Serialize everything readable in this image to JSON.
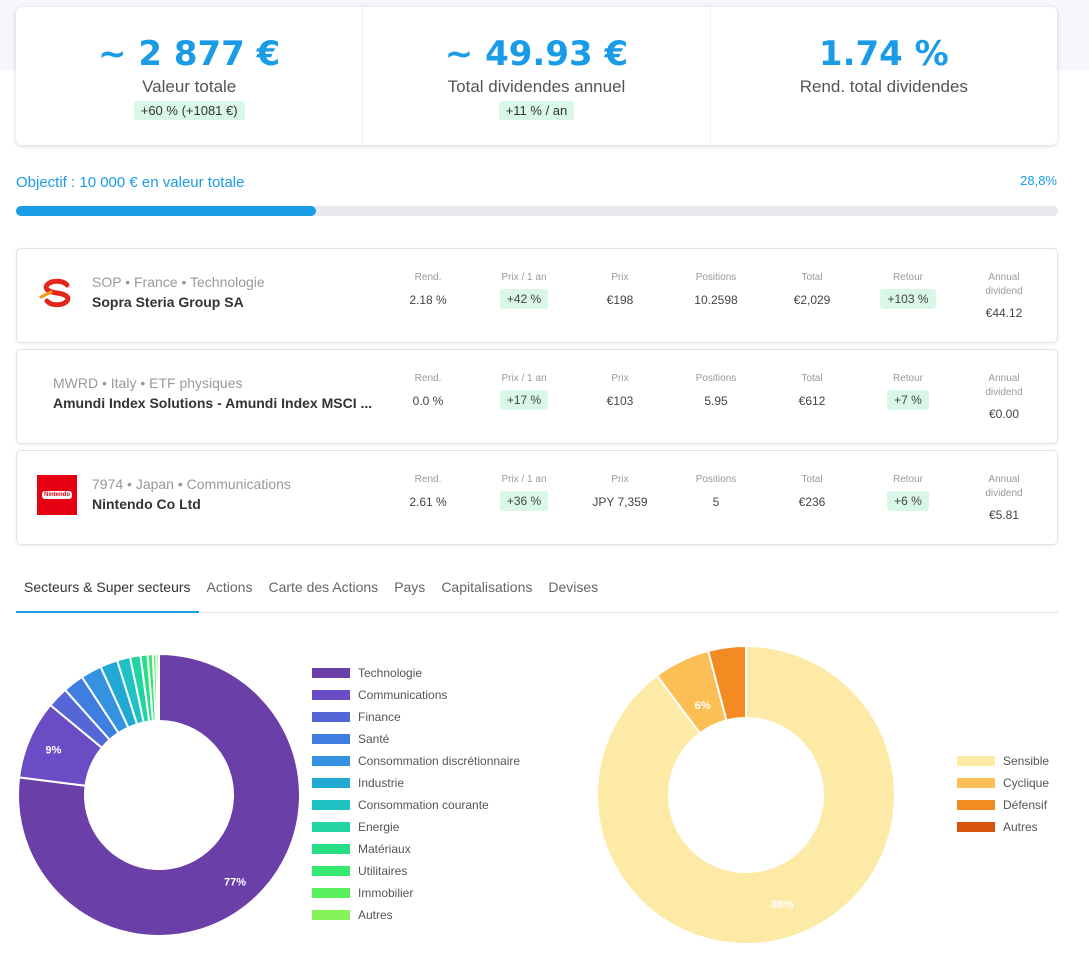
{
  "summary": {
    "value": {
      "amount": "~ 2 877 €",
      "label": "Valeur totale",
      "delta": "+60 % (+1081 €)"
    },
    "dividends": {
      "amount": "~ 49.93 €",
      "label": "Total dividendes annuel",
      "delta": "+11 % / an"
    },
    "yield": {
      "amount": "1.74 %",
      "label": "Rend. total dividendes"
    }
  },
  "goal": {
    "label": "Objectif : 10 000 € en valeur totale",
    "percent_text": "28,8%",
    "progress": 0.288
  },
  "columns": {
    "rend": "Rend.",
    "prix_an": "Prix / 1 an",
    "prix": "Prix",
    "positions": "Positions",
    "total": "Total",
    "retour": "Retour",
    "annual_1": "Annual",
    "annual_2": "dividend"
  },
  "holdings": [
    {
      "meta": "SOP • France • Technologie",
      "name": "Sopra Steria Group SA",
      "logo": "sopra-steria-logo",
      "rend": "2.18 %",
      "prix_an": "+42 %",
      "prix": "€198",
      "positions": "10.2598",
      "total": "€2,029",
      "retour": "+103 %",
      "annual": "€44.12"
    },
    {
      "meta": "MWRD • Italy • ETF physiques",
      "name": "Amundi Index Solutions - Amundi Index MSCI ...",
      "logo": "",
      "rend": "0.0 %",
      "prix_an": "+17 %",
      "prix": "€103",
      "positions": "5.95",
      "total": "€612",
      "retour": "+7 %",
      "annual": "€0.00"
    },
    {
      "meta": "7974 • Japan • Communications",
      "name": "Nintendo Co Ltd",
      "logo": "nintendo-logo",
      "logo_text": "Nintendo",
      "rend": "2.61 %",
      "prix_an": "+36 %",
      "prix": "JPY 7,359",
      "positions": "5",
      "total": "€236",
      "retour": "+6 %",
      "annual": "€5.81"
    }
  ],
  "tabs": [
    "Secteurs & Super secteurs",
    "Actions",
    "Carte des Actions",
    "Pays",
    "Capitalisations",
    "Devises"
  ],
  "chart_data": [
    {
      "type": "pie",
      "categories": [
        "Technologie",
        "Communications",
        "Finance",
        "Santé",
        "Consommation discrétionnaire",
        "Industrie",
        "Consommation courante",
        "Energie",
        "Matériaux",
        "Utilitaires",
        "Immobilier",
        "Autres"
      ],
      "values": [
        77,
        9,
        2.4,
        2.4,
        2.4,
        2.0,
        1.5,
        1.2,
        0.8,
        0.6,
        0.4,
        0.3
      ],
      "colors": [
        "#6b3fa8",
        "#6a4cc4",
        "#5566d6",
        "#3f7ee0",
        "#3592e0",
        "#22a9d3",
        "#1fc2c2",
        "#22d3a4",
        "#26df85",
        "#34e870",
        "#58ef5d",
        "#84f45a"
      ],
      "labels": [
        "77%",
        "9%"
      ],
      "legend": "right"
    },
    {
      "type": "pie",
      "categories": [
        "Sensible",
        "Cyclique",
        "Défensif",
        "Autres"
      ],
      "values": [
        88,
        6,
        4,
        0
      ],
      "colors": [
        "#fdeaa7",
        "#fbbf55",
        "#f48b22",
        "#d8540c"
      ],
      "labels": [
        "88%",
        "6%"
      ],
      "legend": "right"
    }
  ]
}
